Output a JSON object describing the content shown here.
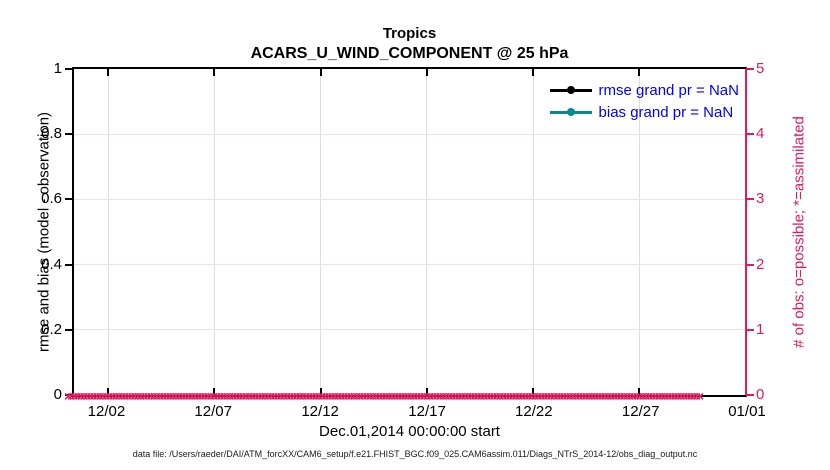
{
  "title": {
    "line1": "Tropics",
    "line2": "ACARS_U_WIND_COMPONENT @ 25 hPa"
  },
  "chart_data": {
    "type": "line",
    "title": "Tropics",
    "subtitle": "ACARS_U_WIND_COMPONENT @ 25 hPa",
    "xlabel": "Dec.01,2014 00:00:00 start",
    "x_axis": {
      "tick_labels": [
        "12/02",
        "12/07",
        "12/12",
        "12/17",
        "12/22",
        "12/27",
        "01/01"
      ],
      "tick_percents": [
        5.1,
        20.92,
        36.76,
        52.6,
        68.42,
        84.25,
        100
      ]
    },
    "left_axis": {
      "label": "rmse and bias (model - observation)",
      "ticks": [
        "0",
        "0.2",
        "0.4",
        "0.6",
        "0.8",
        "1"
      ],
      "range": [
        0,
        1
      ]
    },
    "right_axis": {
      "label": "# of obs: o=possible; *=assimilated",
      "ticks": [
        "0",
        "1",
        "2",
        "3",
        "4",
        "5"
      ],
      "range": [
        0,
        5
      ]
    },
    "grid": "on",
    "legend_position": "upper right inside plot",
    "series": [
      {
        "name": "rmse grand pr = NaN",
        "color_key": "rmse",
        "values": "NaN - no curve plotted"
      },
      {
        "name": "bias grand pr = NaN",
        "color_key": "bias",
        "values": "NaN - no curve plotted"
      },
      {
        "name": "obs markers",
        "color_key": "obs_pink",
        "y_value": 0,
        "note": "dense band of x markers along y=0 spanning the full x range"
      }
    ]
  },
  "legend": {
    "entries": [
      {
        "label": "rmse grand pr = NaN",
        "color_key": "rmse"
      },
      {
        "label": "bias grand pr = NaN",
        "color_key": "bias"
      }
    ]
  },
  "obs_markers": {
    "glyph": "×",
    "count": 200
  },
  "caption": "data file: /Users/raeder/DAI/ATM_forcXX/CAM6_setup/f.e21.FHIST_BGC.f09_025.CAM6assim.011/Diags_NTrS_2014-12/obs_diag_output.nc",
  "colors": {
    "rmse": "#000000",
    "bias": "#008C8C",
    "obs_pink": "#E01A5F",
    "legend_text": "#0000FF",
    "grid_vertical": "#DEDEDE",
    "grid_horizontal": "#F8DDE8",
    "axis": "#000000",
    "caption": "#1A1A1A"
  }
}
